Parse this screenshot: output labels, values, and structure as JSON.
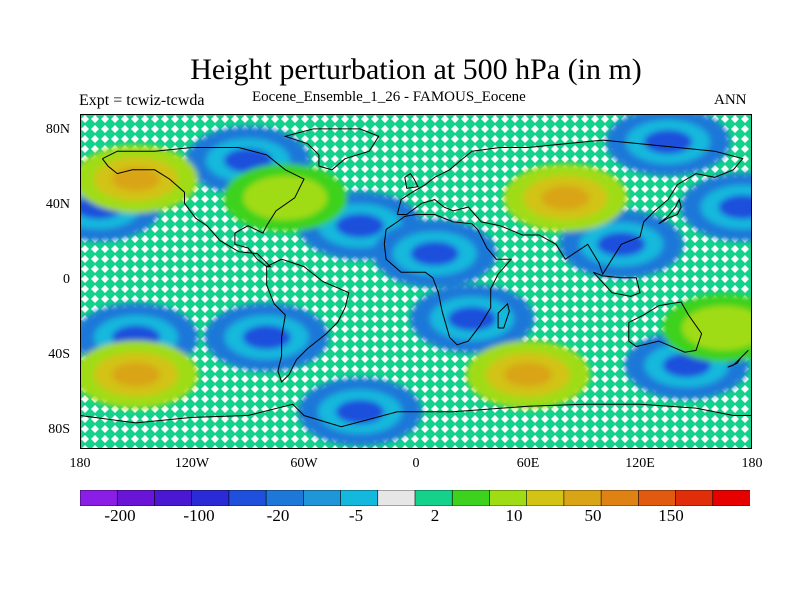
{
  "title": "Height perturbation at 500 hPa (in m)",
  "subtitle_left": "Expt = tcwiz-tcwda",
  "subtitle_center": "Eocene_Ensemble_1_26 - FAMOUS_Eocene",
  "subtitle_right": "ANN",
  "y_ticks": [
    "80N",
    "40N",
    "0",
    "40S",
    "80S"
  ],
  "x_ticks": [
    "180",
    "120W",
    "60W",
    "0",
    "60E",
    "120E",
    "180"
  ],
  "colorbar": {
    "labels": [
      "-200",
      "-100",
      "-20",
      "-5",
      "2",
      "10",
      "50",
      "150"
    ],
    "colors": [
      "#8a1ee6",
      "#6a14d8",
      "#4a18d2",
      "#2a2ad6",
      "#1e50dc",
      "#1e78d8",
      "#1e96d8",
      "#14b8dc",
      "#e6e6e6",
      "#14d28c",
      "#3cd21e",
      "#a0dc14",
      "#d2c314",
      "#d9a516",
      "#de8214",
      "#e05a0f",
      "#e02d0a",
      "#e60000"
    ]
  },
  "chart_data": {
    "type": "heatmap",
    "title": "Height perturbation at 500 hPa (in m)",
    "variable": "Height perturbation at 500 hPa",
    "units": "m",
    "x_range": [
      -180,
      180
    ],
    "y_range": [
      -90,
      90
    ],
    "contour_levels": [
      -200,
      -150,
      -100,
      -50,
      -20,
      -10,
      -5,
      -2,
      2,
      5,
      10,
      20,
      50,
      100,
      150,
      200
    ],
    "features": [
      {
        "lon": 135,
        "lat": 75,
        "value": -20
      },
      {
        "lon": -170,
        "lat": 40,
        "value": -20
      },
      {
        "lon": -90,
        "lat": 65,
        "value": -20
      },
      {
        "lon": -30,
        "lat": 30,
        "value": -20
      },
      {
        "lon": 10,
        "lat": 15,
        "value": -20
      },
      {
        "lon": 110,
        "lat": 20,
        "value": -20
      },
      {
        "lon": 175,
        "lat": 40,
        "value": -20
      },
      {
        "lon": -150,
        "lat": 55,
        "value": 20
      },
      {
        "lon": 80,
        "lat": 45,
        "value": 20
      },
      {
        "lon": -70,
        "lat": 45,
        "value": 10
      },
      {
        "lon": -150,
        "lat": -30,
        "value": -20
      },
      {
        "lon": -80,
        "lat": -30,
        "value": -20
      },
      {
        "lon": 30,
        "lat": -20,
        "value": -20
      },
      {
        "lon": 145,
        "lat": -45,
        "value": -20
      },
      {
        "lon": -150,
        "lat": -50,
        "value": 20
      },
      {
        "lon": 60,
        "lat": -50,
        "value": 20
      },
      {
        "lon": -30,
        "lat": -70,
        "value": -20
      },
      {
        "lon": 165,
        "lat": -25,
        "value": 10
      }
    ]
  }
}
